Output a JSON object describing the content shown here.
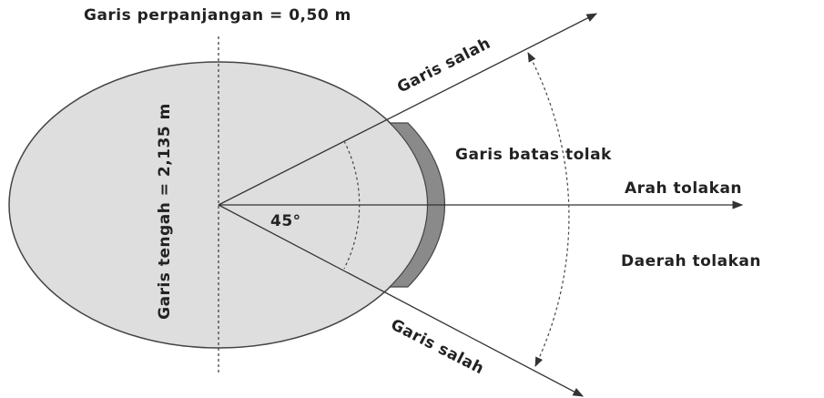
{
  "labels": {
    "extension_line": "Garis perpanjangan = 0,50 m",
    "foul_line_top": "Garis salah",
    "stop_board": "Garis batas tolak",
    "throw_direction": "Arah tolakan",
    "landing_sector": "Daerah tolakan",
    "angle": "45°",
    "diameter": "Garis tengah = 2,135 m",
    "foul_line_bottom": "Garis salah"
  }
}
